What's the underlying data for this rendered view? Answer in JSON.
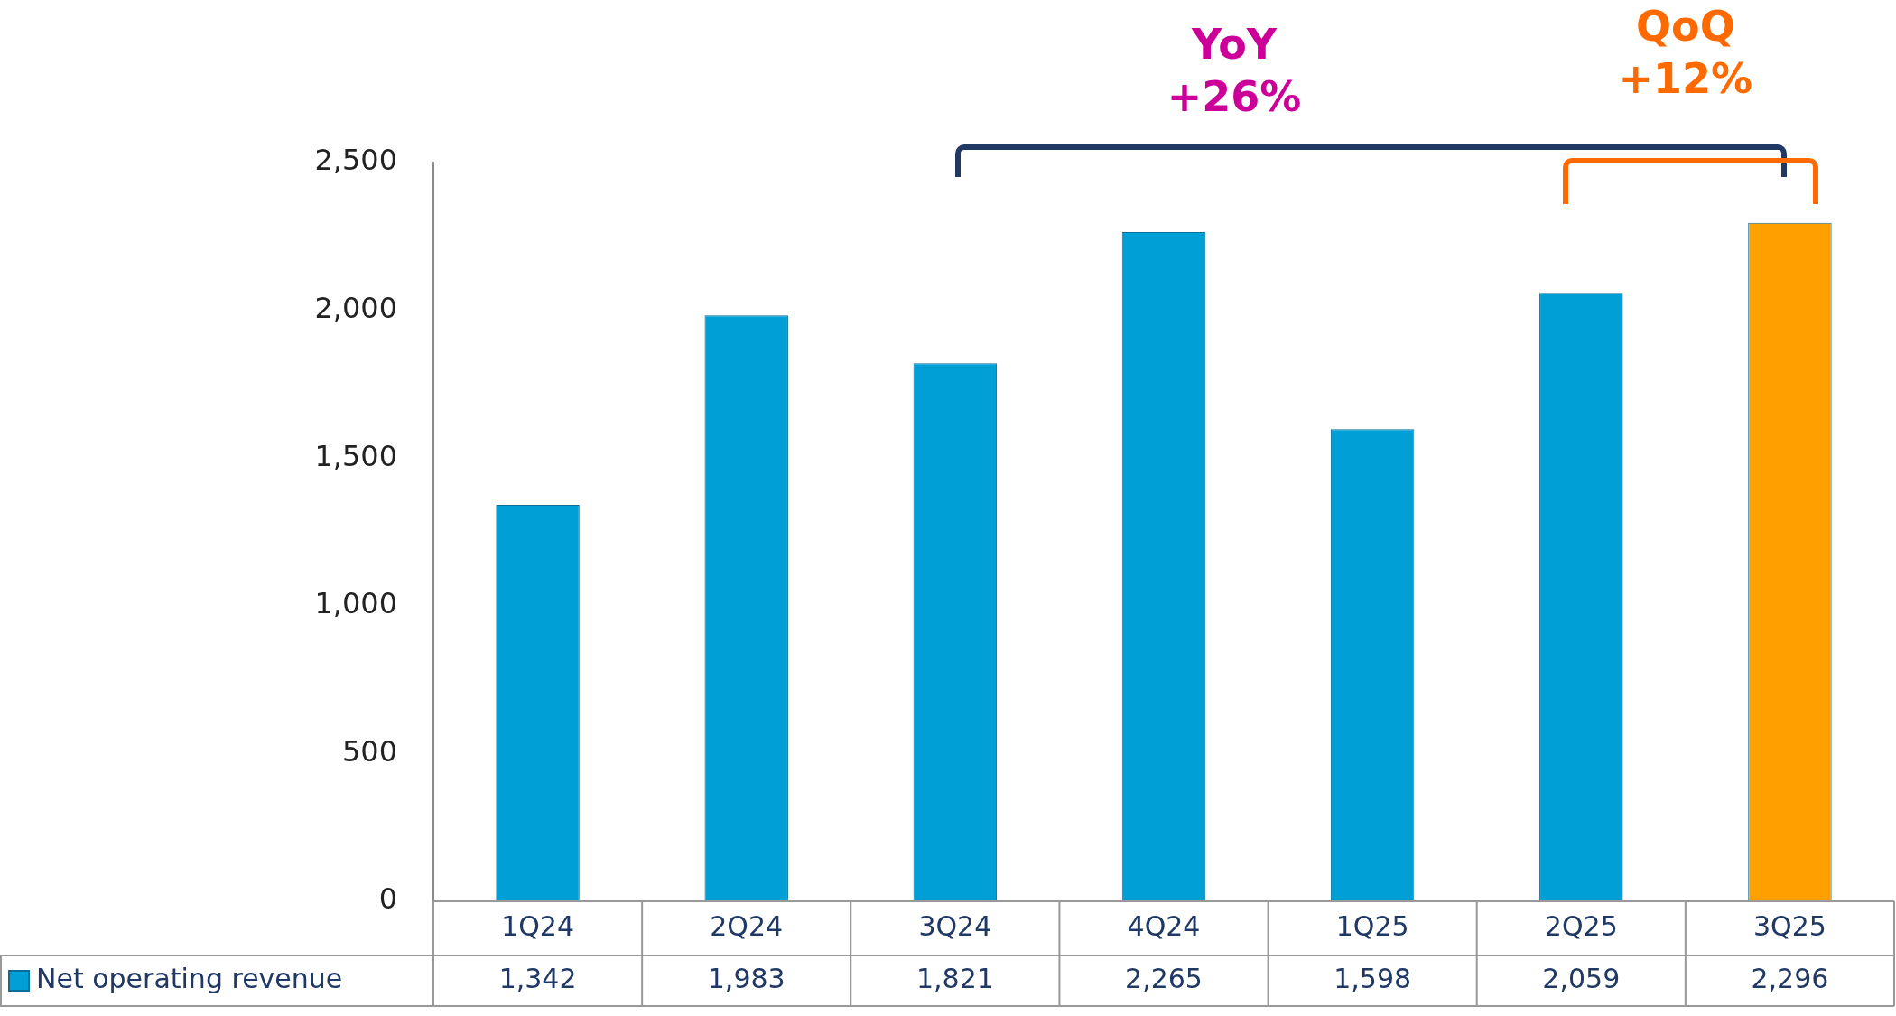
{
  "chart_data": {
    "type": "bar",
    "categories": [
      "1Q24",
      "2Q24",
      "3Q24",
      "4Q24",
      "1Q25",
      "2Q25",
      "3Q25"
    ],
    "series": [
      {
        "name": "Net operating revenue",
        "color": "#00a0d6",
        "colors": [
          "#00a0d6",
          "#00a0d6",
          "#00a0d6",
          "#00a0d6",
          "#00a0d6",
          "#00a0d6",
          "#ffa000"
        ],
        "values": [
          1342,
          1983,
          1821,
          2265,
          1598,
          2059,
          2296
        ]
      }
    ],
    "value_labels": [
      "1,342",
      "1,983",
      "1,821",
      "2,265",
      "1,598",
      "2,059",
      "2,296"
    ],
    "ylim": [
      0,
      2500
    ],
    "yticks": [
      0,
      500,
      {
        "value": 1000,
        "label": "1,000"
      },
      {
        "value": 1500,
        "label": "1,500"
      },
      {
        "value": 2000,
        "label": "2,000"
      },
      {
        "value": 2500,
        "label": "2,500"
      }
    ],
    "grid": false,
    "legend": "bottom",
    "annotations": [
      "YoY +26%",
      "QoQ +12%"
    ]
  }
}
